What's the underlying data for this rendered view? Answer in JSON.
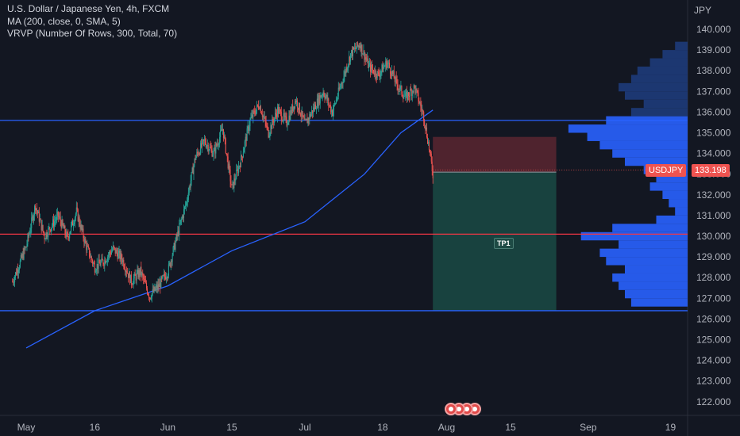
{
  "legend": {
    "title": "U.S. Dollar / Japanese Yen, 4h, FXCM",
    "ma": "MA (200, close, 0, SMA, 5)",
    "vrvp": "VRVP (Number Of Rows, 300, Total, 70)"
  },
  "axis": {
    "currency": "JPY",
    "y_ticks": [
      "140.000",
      "139.000",
      "138.000",
      "137.000",
      "136.000",
      "135.000",
      "134.000",
      "133.000",
      "132.000",
      "131.000",
      "130.000",
      "129.000",
      "128.000",
      "127.000",
      "126.000",
      "125.000",
      "124.000",
      "123.000",
      "122.000"
    ],
    "x_ticks": [
      "May",
      "16",
      "Jun",
      "15",
      "Jul",
      "18",
      "Aug",
      "15",
      "Sep",
      "19"
    ]
  },
  "symbol_badge": {
    "symbol": "USDJPY",
    "price": "133.198"
  },
  "tp_label": "TP1",
  "colors": {
    "background": "#131722",
    "up": "#26a69a",
    "down": "#ef5350",
    "ma": "#2962ff",
    "hline": "#2962ff",
    "red_line": "#f23645",
    "volume_profile": "#2962ff"
  },
  "chart_data": {
    "type": "candlestick",
    "symbol": "USDJPY",
    "timeframe": "4h",
    "ylim": [
      121.4,
      141.0
    ],
    "x_dates": [
      "2023-05-01",
      "2023-05-16",
      "2023-06-01",
      "2023-06-15",
      "2023-07-01",
      "2023-07-18",
      "2023-08-01",
      "2023-08-15",
      "2023-09-01",
      "2023-09-19"
    ],
    "price_path": [
      [
        "2023-04-28",
        127.8
      ],
      [
        "2023-05-01",
        129.5
      ],
      [
        "2023-05-03",
        131.5
      ],
      [
        "2023-05-05",
        130.0
      ],
      [
        "2023-05-08",
        131.0
      ],
      [
        "2023-05-10",
        129.9
      ],
      [
        "2023-05-12",
        131.2
      ],
      [
        "2023-05-14",
        129.6
      ],
      [
        "2023-05-16",
        128.5
      ],
      [
        "2023-05-18",
        128.8
      ],
      [
        "2023-05-20",
        129.4
      ],
      [
        "2023-05-22",
        128.9
      ],
      [
        "2023-05-24",
        127.8
      ],
      [
        "2023-05-26",
        128.3
      ],
      [
        "2023-05-28",
        127.1
      ],
      [
        "2023-05-30",
        127.6
      ],
      [
        "2023-06-01",
        128.3
      ],
      [
        "2023-06-03",
        130.0
      ],
      [
        "2023-06-05",
        131.6
      ],
      [
        "2023-06-07",
        133.8
      ],
      [
        "2023-06-09",
        134.6
      ],
      [
        "2023-06-11",
        134.0
      ],
      [
        "2023-06-13",
        135.2
      ],
      [
        "2023-06-15",
        132.3
      ],
      [
        "2023-06-17",
        133.7
      ],
      [
        "2023-06-19",
        135.6
      ],
      [
        "2023-06-21",
        136.4
      ],
      [
        "2023-06-23",
        135.0
      ],
      [
        "2023-06-25",
        136.1
      ],
      [
        "2023-06-27",
        135.5
      ],
      [
        "2023-06-29",
        136.6
      ],
      [
        "2023-07-01",
        135.4
      ],
      [
        "2023-07-03",
        136.2
      ],
      [
        "2023-07-05",
        137.0
      ],
      [
        "2023-07-07",
        136.0
      ],
      [
        "2023-07-09",
        137.4
      ],
      [
        "2023-07-11",
        138.8
      ],
      [
        "2023-07-13",
        139.3
      ],
      [
        "2023-07-15",
        138.2
      ],
      [
        "2023-07-17",
        137.8
      ],
      [
        "2023-07-19",
        138.4
      ],
      [
        "2023-07-21",
        137.4
      ],
      [
        "2023-07-23",
        136.7
      ],
      [
        "2023-07-25",
        137.2
      ],
      [
        "2023-07-27",
        135.8
      ],
      [
        "2023-07-28",
        134.5
      ],
      [
        "2023-07-29",
        133.0
      ]
    ],
    "ma200_path": [
      [
        "2023-05-01",
        124.6
      ],
      [
        "2023-05-16",
        126.4
      ],
      [
        "2023-06-01",
        127.6
      ],
      [
        "2023-06-15",
        129.3
      ],
      [
        "2023-07-01",
        130.7
      ],
      [
        "2023-07-14",
        133.0
      ],
      [
        "2023-07-22",
        135.0
      ],
      [
        "2023-07-29",
        136.1
      ]
    ],
    "horizontal_lines": [
      {
        "price": 135.6,
        "color": "#2962ff"
      },
      {
        "price": 130.1,
        "color": "#f23645"
      },
      {
        "price": 126.4,
        "color": "#2962ff"
      }
    ],
    "position": {
      "type": "short",
      "entry": 133.1,
      "stop": 134.8,
      "target": 126.4,
      "start_date": "2023-07-29",
      "end_date": "2023-08-25"
    },
    "last_price": 133.198,
    "volume_profile": {
      "prices": [
        126.8,
        127.2,
        127.6,
        128.0,
        128.4,
        128.8,
        129.2,
        129.6,
        130.0,
        130.4,
        130.8,
        131.2,
        131.6,
        132.0,
        132.4,
        132.8,
        133.2,
        133.6,
        134.0,
        134.4,
        134.8,
        135.2,
        135.6,
        136.0,
        136.4,
        136.8,
        137.2,
        137.6,
        138.0,
        138.4,
        138.8,
        139.2
      ],
      "volumes": [
        0.45,
        0.5,
        0.55,
        0.6,
        0.5,
        0.65,
        0.7,
        0.55,
        0.85,
        0.6,
        0.25,
        0.1,
        0.15,
        0.2,
        0.3,
        0.25,
        0.35,
        0.5,
        0.6,
        0.7,
        0.8,
        0.95,
        0.65,
        0.45,
        0.35,
        0.5,
        0.55,
        0.45,
        0.4,
        0.3,
        0.2,
        0.1
      ]
    }
  }
}
